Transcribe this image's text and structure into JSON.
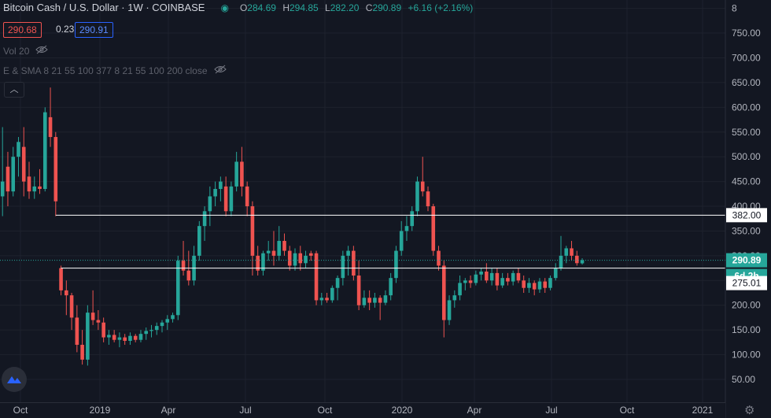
{
  "header": {
    "symbol": "Bitcoin Cash / U.S. Dollar · 1W · COINBASE",
    "open_label": "O",
    "open": "284.69",
    "high_label": "H",
    "high": "294.85",
    "low_label": "L",
    "low": "282.20",
    "close_label": "C",
    "close": "290.89",
    "change": "+6.16 (+2.16%)"
  },
  "trade": {
    "sell": "290.68",
    "spread": "0.23",
    "buy": "290.91"
  },
  "indicators": {
    "volume": "Vol 20",
    "ma": "E & SMA 8 21 55 100 377 8 21 55 100 200 close"
  },
  "colors": {
    "up": "#26a69a",
    "down": "#ef5350",
    "background": "#131722",
    "grid": "#1e222d",
    "hline": "#ffffff"
  },
  "icons": [
    "eye-off-icon",
    "chevron-up-icon",
    "tradingview-logo-icon",
    "gear-icon"
  ],
  "chart_data": {
    "type": "candlestick",
    "title": "Bitcoin Cash / U.S. Dollar · 1W · COINBASE",
    "y_tick_labels": [
      "50.00",
      "100.00",
      "150.00",
      "200.00",
      "250.00",
      "300.00",
      "350.00",
      "400.00",
      "450.00",
      "500.00",
      "550.00",
      "600.00",
      "650.00",
      "700.00",
      "750.00",
      "8"
    ],
    "x_tick_labels": [
      "Oct",
      "2019",
      "Apr",
      "Jul",
      "Oct",
      "2020",
      "Apr",
      "Jul",
      "Oct",
      "2021"
    ],
    "ylim": [
      20,
      810
    ],
    "horizontal_lines": [
      382.0,
      275.01
    ],
    "price_labels": [
      {
        "text": "382.00",
        "value": 382.0,
        "style": "line"
      },
      {
        "text": "290.89",
        "value": 290.89,
        "style": "last"
      },
      {
        "text": "6d 2h",
        "value": 275.5,
        "style": "countdown"
      },
      {
        "text": "275.01",
        "value": 275.01,
        "style": "line"
      }
    ],
    "series": [
      {
        "c": "up",
        "o": 420,
        "h": 560,
        "l": 380,
        "cl": 450
      },
      {
        "c": "down",
        "o": 480,
        "h": 510,
        "l": 400,
        "cl": 430
      },
      {
        "c": "up",
        "o": 430,
        "h": 520,
        "l": 420,
        "cl": 500
      },
      {
        "c": "up",
        "o": 500,
        "h": 540,
        "l": 460,
        "cl": 530
      },
      {
        "c": "down",
        "o": 520,
        "h": 560,
        "l": 420,
        "cl": 450
      },
      {
        "c": "down",
        "o": 460,
        "h": 490,
        "l": 415,
        "cl": 430
      },
      {
        "c": "up",
        "o": 430,
        "h": 460,
        "l": 415,
        "cl": 440
      },
      {
        "c": "down",
        "o": 440,
        "h": 475,
        "l": 425,
        "cl": 435
      },
      {
        "c": "up",
        "o": 435,
        "h": 600,
        "l": 430,
        "cl": 590
      },
      {
        "c": "down",
        "o": 580,
        "h": 640,
        "l": 520,
        "cl": 540
      },
      {
        "c": "down",
        "o": 540,
        "h": 550,
        "l": 380,
        "cl": 410
      },
      {
        "c": "down",
        "o": 275,
        "h": 280,
        "l": 220,
        "cl": 230
      },
      {
        "c": "down",
        "o": 230,
        "h": 250,
        "l": 180,
        "cl": 220
      },
      {
        "c": "down",
        "o": 220,
        "h": 225,
        "l": 150,
        "cl": 175
      },
      {
        "c": "down",
        "o": 175,
        "h": 200,
        "l": 105,
        "cl": 120
      },
      {
        "c": "down",
        "o": 120,
        "h": 150,
        "l": 80,
        "cl": 90
      },
      {
        "c": "up",
        "o": 90,
        "h": 200,
        "l": 78,
        "cl": 185
      },
      {
        "c": "down",
        "o": 185,
        "h": 230,
        "l": 160,
        "cl": 170
      },
      {
        "c": "down",
        "o": 170,
        "h": 190,
        "l": 150,
        "cl": 165
      },
      {
        "c": "down",
        "o": 165,
        "h": 175,
        "l": 125,
        "cl": 135
      },
      {
        "c": "up",
        "o": 135,
        "h": 150,
        "l": 120,
        "cl": 140
      },
      {
        "c": "down",
        "o": 140,
        "h": 150,
        "l": 125,
        "cl": 130
      },
      {
        "c": "up",
        "o": 130,
        "h": 145,
        "l": 115,
        "cl": 135
      },
      {
        "c": "down",
        "o": 135,
        "h": 142,
        "l": 120,
        "cl": 128
      },
      {
        "c": "up",
        "o": 128,
        "h": 145,
        "l": 120,
        "cl": 138
      },
      {
        "c": "down",
        "o": 138,
        "h": 142,
        "l": 125,
        "cl": 130
      },
      {
        "c": "up",
        "o": 130,
        "h": 150,
        "l": 125,
        "cl": 142
      },
      {
        "c": "up",
        "o": 142,
        "h": 155,
        "l": 130,
        "cl": 148
      },
      {
        "c": "up",
        "o": 148,
        "h": 160,
        "l": 135,
        "cl": 150
      },
      {
        "c": "up",
        "o": 150,
        "h": 165,
        "l": 140,
        "cl": 158
      },
      {
        "c": "up",
        "o": 158,
        "h": 170,
        "l": 145,
        "cl": 165
      },
      {
        "c": "up",
        "o": 165,
        "h": 180,
        "l": 150,
        "cl": 172
      },
      {
        "c": "up",
        "o": 172,
        "h": 185,
        "l": 165,
        "cl": 180
      },
      {
        "c": "up",
        "o": 180,
        "h": 300,
        "l": 170,
        "cl": 290
      },
      {
        "c": "down",
        "o": 290,
        "h": 330,
        "l": 260,
        "cl": 270
      },
      {
        "c": "down",
        "o": 270,
        "h": 310,
        "l": 240,
        "cl": 250
      },
      {
        "c": "up",
        "o": 250,
        "h": 320,
        "l": 240,
        "cl": 300
      },
      {
        "c": "up",
        "o": 300,
        "h": 370,
        "l": 290,
        "cl": 360
      },
      {
        "c": "up",
        "o": 360,
        "h": 400,
        "l": 330,
        "cl": 390
      },
      {
        "c": "up",
        "o": 390,
        "h": 440,
        "l": 360,
        "cl": 420
      },
      {
        "c": "up",
        "o": 420,
        "h": 450,
        "l": 400,
        "cl": 435
      },
      {
        "c": "up",
        "o": 435,
        "h": 460,
        "l": 410,
        "cl": 450
      },
      {
        "c": "down",
        "o": 440,
        "h": 460,
        "l": 380,
        "cl": 390
      },
      {
        "c": "up",
        "o": 390,
        "h": 450,
        "l": 380,
        "cl": 440
      },
      {
        "c": "up",
        "o": 440,
        "h": 510,
        "l": 430,
        "cl": 490
      },
      {
        "c": "down",
        "o": 490,
        "h": 520,
        "l": 420,
        "cl": 440
      },
      {
        "c": "down",
        "o": 440,
        "h": 450,
        "l": 380,
        "cl": 400
      },
      {
        "c": "down",
        "o": 400,
        "h": 410,
        "l": 260,
        "cl": 300
      },
      {
        "c": "down",
        "o": 300,
        "h": 320,
        "l": 260,
        "cl": 270
      },
      {
        "c": "up",
        "o": 270,
        "h": 310,
        "l": 260,
        "cl": 305
      },
      {
        "c": "up",
        "o": 305,
        "h": 330,
        "l": 290,
        "cl": 310
      },
      {
        "c": "down",
        "o": 310,
        "h": 350,
        "l": 280,
        "cl": 300
      },
      {
        "c": "up",
        "o": 300,
        "h": 360,
        "l": 290,
        "cl": 330
      },
      {
        "c": "down",
        "o": 330,
        "h": 345,
        "l": 300,
        "cl": 310
      },
      {
        "c": "down",
        "o": 310,
        "h": 320,
        "l": 270,
        "cl": 280
      },
      {
        "c": "up",
        "o": 280,
        "h": 315,
        "l": 270,
        "cl": 305
      },
      {
        "c": "down",
        "o": 305,
        "h": 320,
        "l": 270,
        "cl": 285
      },
      {
        "c": "up",
        "o": 285,
        "h": 310,
        "l": 275,
        "cl": 300
      },
      {
        "c": "down",
        "o": 300,
        "h": 310,
        "l": 290,
        "cl": 305
      },
      {
        "c": "down",
        "o": 305,
        "h": 310,
        "l": 200,
        "cl": 210
      },
      {
        "c": "up",
        "o": 210,
        "h": 225,
        "l": 200,
        "cl": 215
      },
      {
        "c": "down",
        "o": 215,
        "h": 225,
        "l": 205,
        "cl": 210
      },
      {
        "c": "up",
        "o": 210,
        "h": 240,
        "l": 205,
        "cl": 235
      },
      {
        "c": "up",
        "o": 235,
        "h": 260,
        "l": 210,
        "cl": 255
      },
      {
        "c": "up",
        "o": 255,
        "h": 310,
        "l": 240,
        "cl": 300
      },
      {
        "c": "up",
        "o": 300,
        "h": 320,
        "l": 260,
        "cl": 310
      },
      {
        "c": "down",
        "o": 310,
        "h": 320,
        "l": 250,
        "cl": 260
      },
      {
        "c": "down",
        "o": 260,
        "h": 290,
        "l": 190,
        "cl": 200
      },
      {
        "c": "up",
        "o": 200,
        "h": 230,
        "l": 195,
        "cl": 215
      },
      {
        "c": "down",
        "o": 215,
        "h": 230,
        "l": 190,
        "cl": 205
      },
      {
        "c": "up",
        "o": 205,
        "h": 225,
        "l": 195,
        "cl": 215
      },
      {
        "c": "down",
        "o": 215,
        "h": 220,
        "l": 170,
        "cl": 205
      },
      {
        "c": "up",
        "o": 205,
        "h": 230,
        "l": 200,
        "cl": 220
      },
      {
        "c": "up",
        "o": 220,
        "h": 265,
        "l": 210,
        "cl": 255
      },
      {
        "c": "up",
        "o": 255,
        "h": 320,
        "l": 245,
        "cl": 310
      },
      {
        "c": "up",
        "o": 310,
        "h": 370,
        "l": 300,
        "cl": 350
      },
      {
        "c": "up",
        "o": 350,
        "h": 380,
        "l": 330,
        "cl": 360
      },
      {
        "c": "up",
        "o": 360,
        "h": 400,
        "l": 350,
        "cl": 390
      },
      {
        "c": "up",
        "o": 390,
        "h": 460,
        "l": 380,
        "cl": 450
      },
      {
        "c": "down",
        "o": 450,
        "h": 500,
        "l": 420,
        "cl": 430
      },
      {
        "c": "down",
        "o": 430,
        "h": 440,
        "l": 390,
        "cl": 400
      },
      {
        "c": "down",
        "o": 400,
        "h": 405,
        "l": 300,
        "cl": 310
      },
      {
        "c": "down",
        "o": 310,
        "h": 320,
        "l": 270,
        "cl": 280
      },
      {
        "c": "down",
        "o": 280,
        "h": 290,
        "l": 135,
        "cl": 170
      },
      {
        "c": "up",
        "o": 170,
        "h": 220,
        "l": 160,
        "cl": 210
      },
      {
        "c": "up",
        "o": 210,
        "h": 230,
        "l": 195,
        "cl": 220
      },
      {
        "c": "up",
        "o": 220,
        "h": 260,
        "l": 210,
        "cl": 245
      },
      {
        "c": "up",
        "o": 245,
        "h": 255,
        "l": 230,
        "cl": 250
      },
      {
        "c": "down",
        "o": 250,
        "h": 260,
        "l": 235,
        "cl": 245
      },
      {
        "c": "up",
        "o": 245,
        "h": 270,
        "l": 240,
        "cl": 262
      },
      {
        "c": "up",
        "o": 262,
        "h": 275,
        "l": 250,
        "cl": 268
      },
      {
        "c": "down",
        "o": 268,
        "h": 285,
        "l": 245,
        "cl": 250
      },
      {
        "c": "up",
        "o": 250,
        "h": 275,
        "l": 240,
        "cl": 265
      },
      {
        "c": "down",
        "o": 265,
        "h": 275,
        "l": 230,
        "cl": 240
      },
      {
        "c": "up",
        "o": 240,
        "h": 265,
        "l": 235,
        "cl": 255
      },
      {
        "c": "down",
        "o": 255,
        "h": 265,
        "l": 240,
        "cl": 248
      },
      {
        "c": "up",
        "o": 248,
        "h": 270,
        "l": 240,
        "cl": 265
      },
      {
        "c": "down",
        "o": 265,
        "h": 275,
        "l": 245,
        "cl": 250
      },
      {
        "c": "down",
        "o": 250,
        "h": 260,
        "l": 225,
        "cl": 235
      },
      {
        "c": "up",
        "o": 235,
        "h": 255,
        "l": 225,
        "cl": 245
      },
      {
        "c": "down",
        "o": 245,
        "h": 250,
        "l": 220,
        "cl": 232
      },
      {
        "c": "up",
        "o": 232,
        "h": 255,
        "l": 225,
        "cl": 248
      },
      {
        "c": "down",
        "o": 248,
        "h": 255,
        "l": 225,
        "cl": 235
      },
      {
        "c": "up",
        "o": 235,
        "h": 260,
        "l": 230,
        "cl": 255
      },
      {
        "c": "up",
        "o": 255,
        "h": 285,
        "l": 250,
        "cl": 275
      },
      {
        "c": "up",
        "o": 275,
        "h": 340,
        "l": 270,
        "cl": 300
      },
      {
        "c": "up",
        "o": 300,
        "h": 320,
        "l": 285,
        "cl": 315
      },
      {
        "c": "down",
        "o": 315,
        "h": 330,
        "l": 290,
        "cl": 300
      },
      {
        "c": "down",
        "o": 300,
        "h": 310,
        "l": 280,
        "cl": 285
      },
      {
        "c": "up",
        "o": 284.69,
        "h": 294.85,
        "l": 282.2,
        "cl": 290.89
      }
    ]
  }
}
